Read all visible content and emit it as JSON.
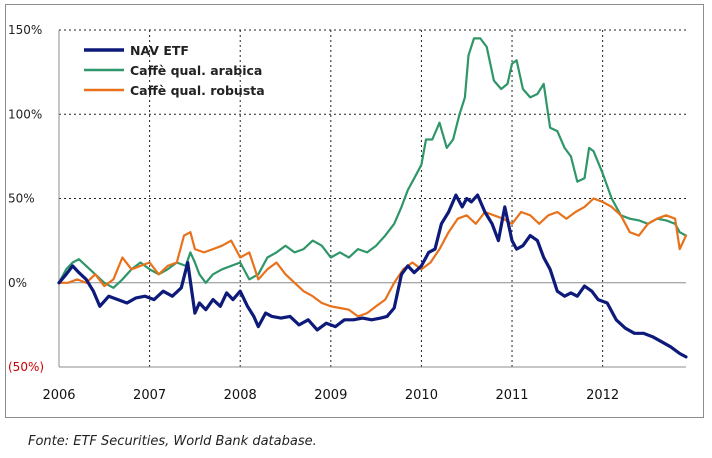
{
  "source_note": "Fonte: ETF Securities, World Bank database.",
  "chart_data": {
    "type": "line",
    "title": "",
    "xlabel": "",
    "ylabel": "",
    "xlim": [
      2006,
      2012.92
    ],
    "ylim": [
      -50,
      150
    ],
    "y_ticks": [
      {
        "value": 150,
        "label": "150%",
        "color": "#222222"
      },
      {
        "value": 100,
        "label": "100%",
        "color": "#222222"
      },
      {
        "value": 50,
        "label": "50%",
        "color": "#222222"
      },
      {
        "value": 0,
        "label": "0%",
        "color": "#222222"
      },
      {
        "value": -50,
        "label": "(50%)",
        "color": "#cc0000"
      }
    ],
    "x_ticks": [
      {
        "value": 2006,
        "label": "2006"
      },
      {
        "value": 2007,
        "label": "2007"
      },
      {
        "value": 2008,
        "label": "2008"
      },
      {
        "value": 2009,
        "label": "2009"
      },
      {
        "value": 2010,
        "label": "2010"
      },
      {
        "value": 2011,
        "label": "2011"
      },
      {
        "value": 2012,
        "label": "2012"
      }
    ],
    "grid": {
      "horizontal": "dashed",
      "vertical": "dashed"
    },
    "legend_position": "top-left",
    "series": [
      {
        "name": "NAV ETF",
        "color": "#0d1a7a",
        "x": [
          2006.0,
          2006.08,
          2006.15,
          2006.22,
          2006.3,
          2006.38,
          2006.45,
          2006.55,
          2006.65,
          2006.75,
          2006.85,
          2006.95,
          2007.05,
          2007.15,
          2007.25,
          2007.35,
          2007.42,
          2007.5,
          2007.55,
          2007.62,
          2007.7,
          2007.78,
          2007.85,
          2007.92,
          2008.0,
          2008.08,
          2008.15,
          2008.2,
          2008.28,
          2008.35,
          2008.45,
          2008.55,
          2008.65,
          2008.75,
          2008.85,
          2008.95,
          2009.05,
          2009.15,
          2009.25,
          2009.35,
          2009.45,
          2009.55,
          2009.62,
          2009.7,
          2009.78,
          2009.85,
          2009.92,
          2010.0,
          2010.08,
          2010.15,
          2010.22,
          2010.3,
          2010.38,
          2010.45,
          2010.5,
          2010.55,
          2010.62,
          2010.7,
          2010.78,
          2010.85,
          2010.92,
          2011.0,
          2011.05,
          2011.12,
          2011.2,
          2011.28,
          2011.35,
          2011.42,
          2011.5,
          2011.58,
          2011.65,
          2011.72,
          2011.8,
          2011.88,
          2011.95,
          2012.05,
          2012.15,
          2012.25,
          2012.35,
          2012.45,
          2012.55,
          2012.65,
          2012.75,
          2012.85,
          2012.92
        ],
        "values": [
          0,
          5,
          10,
          6,
          2,
          -5,
          -14,
          -8,
          -10,
          -12,
          -9,
          -8,
          -10,
          -5,
          -8,
          -3,
          12,
          -18,
          -12,
          -16,
          -10,
          -14,
          -6,
          -10,
          -5,
          -14,
          -20,
          -26,
          -18,
          -20,
          -21,
          -20,
          -25,
          -22,
          -28,
          -24,
          -26,
          -22,
          -22,
          -21,
          -22,
          -21,
          -20,
          -15,
          5,
          10,
          6,
          10,
          18,
          20,
          35,
          42,
          52,
          45,
          50,
          48,
          52,
          42,
          35,
          25,
          45,
          25,
          20,
          22,
          28,
          25,
          15,
          8,
          -5,
          -8,
          -6,
          -8,
          -2,
          -5,
          -10,
          -12,
          -22,
          -27,
          -30,
          -30,
          -32,
          -35,
          -38,
          -42,
          -44
        ]
      },
      {
        "name": "Caffè qual. arabica",
        "color": "#2e9668",
        "x": [
          2006.0,
          2006.08,
          2006.15,
          2006.22,
          2006.3,
          2006.4,
          2006.5,
          2006.6,
          2006.7,
          2006.8,
          2006.9,
          2007.0,
          2007.1,
          2007.2,
          2007.3,
          2007.4,
          2007.45,
          2007.5,
          2007.55,
          2007.62,
          2007.7,
          2007.8,
          2007.9,
          2008.0,
          2008.1,
          2008.2,
          2008.3,
          2008.4,
          2008.5,
          2008.6,
          2008.7,
          2008.8,
          2008.9,
          2009.0,
          2009.1,
          2009.2,
          2009.3,
          2009.4,
          2009.5,
          2009.6,
          2009.7,
          2009.78,
          2009.85,
          2009.92,
          2010.0,
          2010.05,
          2010.12,
          2010.2,
          2010.28,
          2010.35,
          2010.42,
          2010.48,
          2010.52,
          2010.58,
          2010.65,
          2010.72,
          2010.8,
          2010.88,
          2010.95,
          2011.0,
          2011.05,
          2011.12,
          2011.2,
          2011.28,
          2011.35,
          2011.42,
          2011.5,
          2011.58,
          2011.65,
          2011.72,
          2011.8,
          2011.85,
          2011.9,
          2012.0,
          2012.1,
          2012.2,
          2012.3,
          2012.4,
          2012.5,
          2012.6,
          2012.7,
          2012.8,
          2012.85,
          2012.92
        ],
        "values": [
          0,
          8,
          12,
          14,
          10,
          5,
          0,
          -3,
          2,
          8,
          12,
          8,
          5,
          8,
          12,
          10,
          18,
          12,
          5,
          0,
          5,
          8,
          10,
          12,
          2,
          5,
          15,
          18,
          22,
          18,
          20,
          25,
          22,
          15,
          18,
          15,
          20,
          18,
          22,
          28,
          35,
          45,
          55,
          62,
          70,
          85,
          85,
          95,
          80,
          85,
          100,
          110,
          135,
          145,
          145,
          140,
          120,
          115,
          118,
          130,
          132,
          115,
          110,
          112,
          118,
          92,
          90,
          80,
          75,
          60,
          62,
          80,
          78,
          65,
          50,
          40,
          38,
          37,
          35,
          38,
          37,
          35,
          30,
          28
        ]
      },
      {
        "name": "Caffè qual. robusta",
        "color": "#e8721c",
        "x": [
          2006.0,
          2006.1,
          2006.2,
          2006.3,
          2006.4,
          2006.5,
          2006.6,
          2006.7,
          2006.8,
          2006.9,
          2007.0,
          2007.1,
          2007.2,
          2007.3,
          2007.38,
          2007.45,
          2007.5,
          2007.6,
          2007.7,
          2007.8,
          2007.9,
          2008.0,
          2008.1,
          2008.2,
          2008.3,
          2008.4,
          2008.5,
          2008.6,
          2008.7,
          2008.8,
          2008.9,
          2009.0,
          2009.1,
          2009.2,
          2009.3,
          2009.4,
          2009.5,
          2009.6,
          2009.7,
          2009.8,
          2009.9,
          2010.0,
          2010.1,
          2010.2,
          2010.3,
          2010.4,
          2010.5,
          2010.6,
          2010.7,
          2010.8,
          2010.9,
          2011.0,
          2011.1,
          2011.2,
          2011.3,
          2011.4,
          2011.5,
          2011.6,
          2011.7,
          2011.8,
          2011.9,
          2012.0,
          2012.1,
          2012.2,
          2012.3,
          2012.4,
          2012.5,
          2012.6,
          2012.7,
          2012.8,
          2012.85,
          2012.92
        ],
        "values": [
          0,
          0,
          2,
          0,
          5,
          -2,
          2,
          15,
          8,
          10,
          12,
          5,
          10,
          12,
          28,
          30,
          20,
          18,
          20,
          22,
          25,
          15,
          18,
          2,
          8,
          12,
          5,
          0,
          -5,
          -8,
          -12,
          -14,
          -15,
          -16,
          -20,
          -18,
          -14,
          -10,
          0,
          8,
          12,
          8,
          12,
          20,
          30,
          38,
          40,
          35,
          42,
          40,
          38,
          35,
          42,
          40,
          35,
          40,
          42,
          38,
          42,
          45,
          50,
          48,
          45,
          40,
          30,
          28,
          35,
          38,
          40,
          38,
          20,
          28
        ]
      }
    ]
  }
}
